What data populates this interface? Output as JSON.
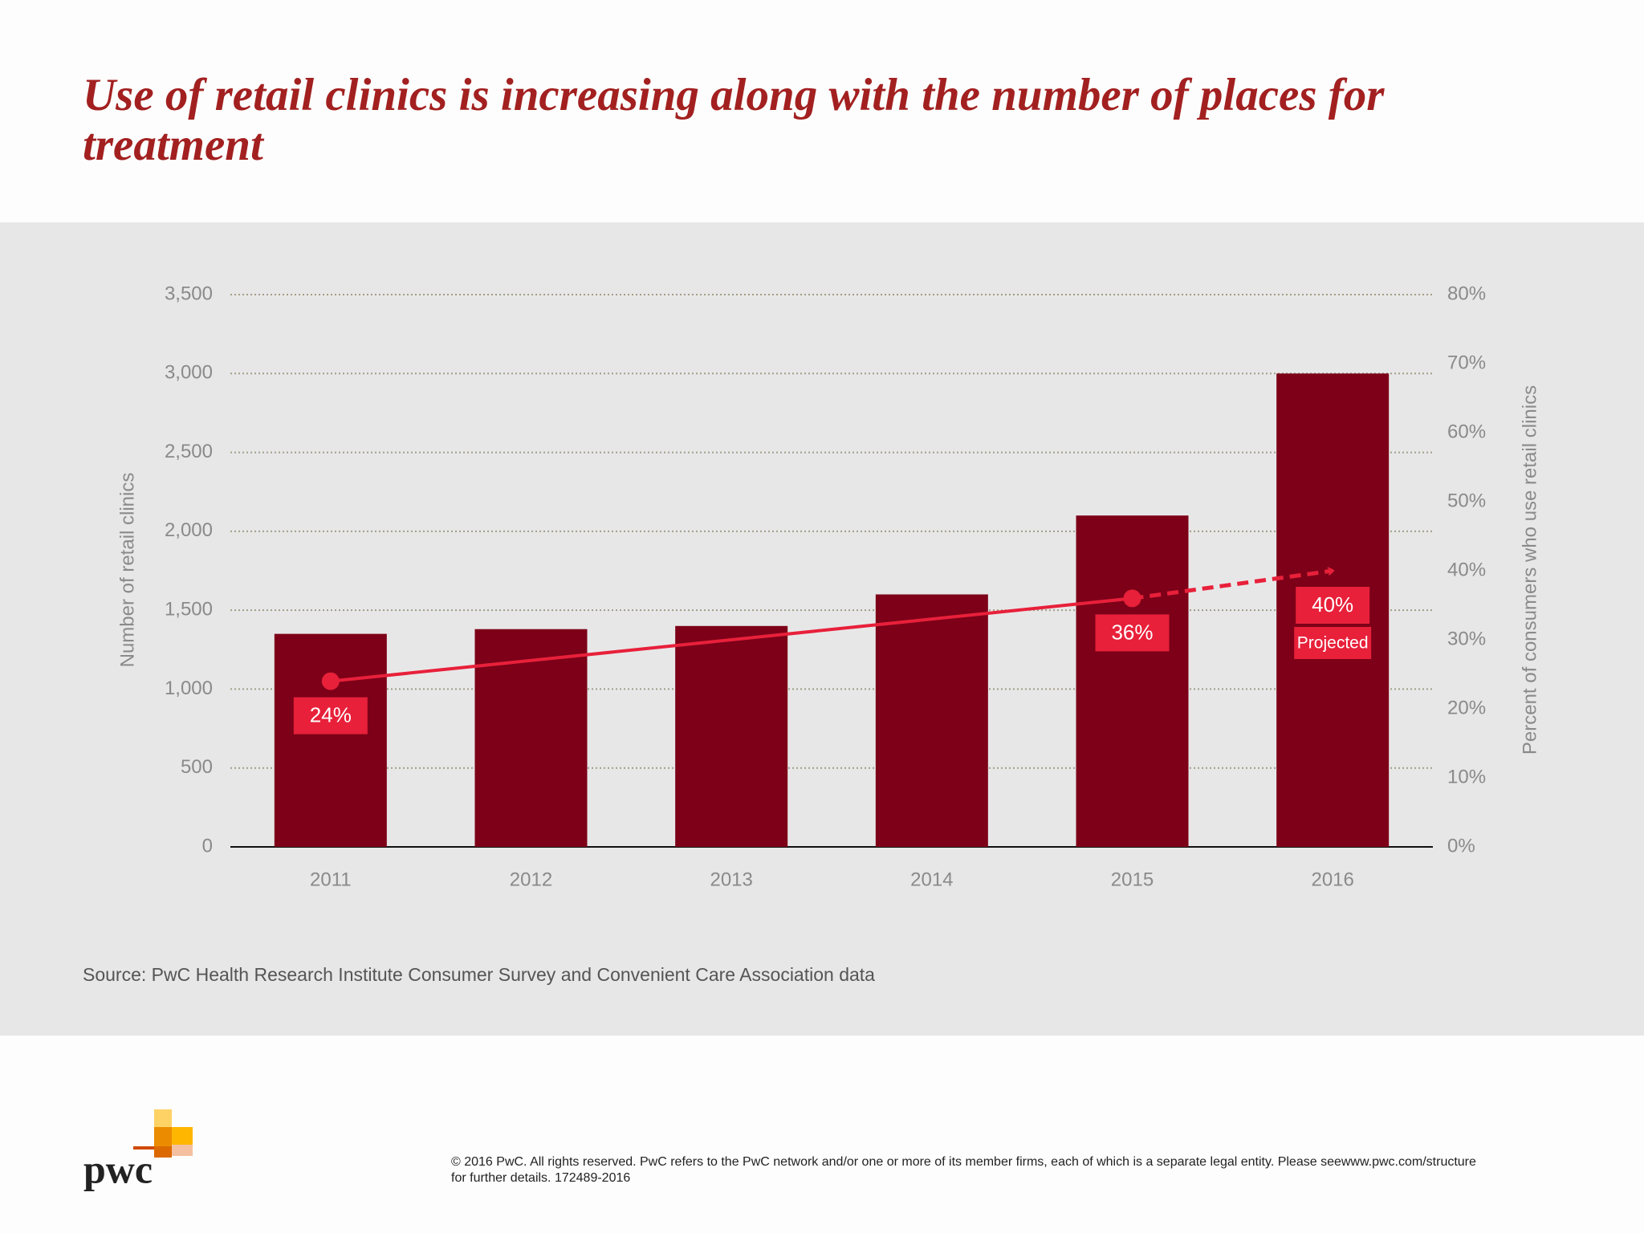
{
  "chart_data": {
    "type": "bar",
    "title": "Use of retail clinics is increasing along with the number of places for treatment",
    "categories": [
      "2011",
      "2012",
      "2013",
      "2014",
      "2015",
      "2016"
    ],
    "series": [
      {
        "name": "Number of retail clinics",
        "color": "#7d0018",
        "values": [
          1350,
          1380,
          1400,
          1600,
          2100,
          3000
        ]
      },
      {
        "name": "Percent of consumers who use retail clinics",
        "type": "line",
        "axis": "y2",
        "color": "#e8203a",
        "x": [
          2011,
          2015,
          2016
        ],
        "values": [
          24,
          36,
          40
        ],
        "value_labels": [
          "24%",
          "36%",
          "40%"
        ],
        "projected": [
          false,
          false,
          true
        ]
      }
    ],
    "projected_label": "Projected",
    "ylabel": "Number of retail clinics",
    "y2label": "Percent of consumers who use retail clinics",
    "ylim": [
      0,
      3500
    ],
    "yticks": [
      0,
      500,
      {
        "value": 1000,
        "label": "1,000"
      },
      {
        "value": 1500,
        "label": "1,500"
      },
      {
        "value": 2000,
        "label": "2,000"
      },
      {
        "value": 2500,
        "label": "2,500"
      },
      {
        "value": 3000,
        "label": "3,000"
      },
      {
        "value": 3500,
        "label": "3,500"
      }
    ],
    "y2lim": [
      0,
      80
    ],
    "y2ticks": [
      {
        "value": 0,
        "label": "0%"
      },
      {
        "value": 10,
        "label": "10%"
      },
      {
        "value": 20,
        "label": "20%"
      },
      {
        "value": 30,
        "label": "30%"
      },
      {
        "value": 40,
        "label": "40%"
      },
      {
        "value": 50,
        "label": "50%"
      },
      {
        "value": 60,
        "label": "60%"
      },
      {
        "value": 70,
        "label": "70%"
      },
      {
        "value": 80,
        "label": "80%"
      }
    ],
    "grid": true,
    "source": "Source: PwC Health Research Institute Consumer Survey and Convenient Care Association data"
  },
  "footer": {
    "logo": "pwc",
    "copyright": [
      "© 2016 PwC. All rights reserved. PwC refers to the PwC network and/or one or more of its member firms, each of which is a separate legal entity. Please seewww.pwc.com/structure",
      "for further details. 172489-2016"
    ]
  }
}
